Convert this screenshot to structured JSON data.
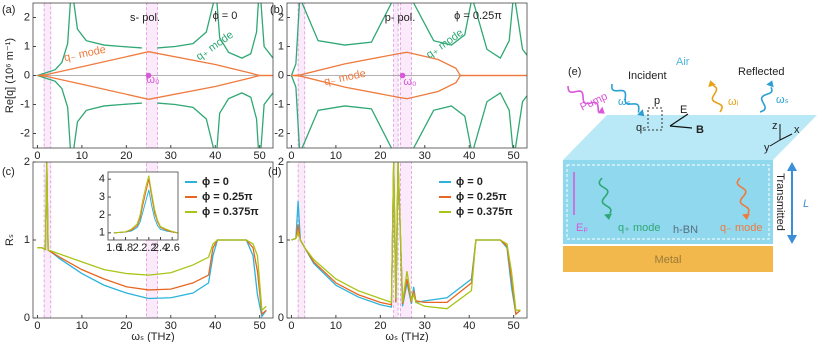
{
  "chart_data": [
    {
      "type": "line",
      "label": "(a)",
      "title": "s- pol.",
      "ylabel": "Re[q] (10⁶ m⁻¹)",
      "annotations": [
        "ϕ = 0",
        "q₋ mode",
        "q₊ mode",
        "ω₀"
      ],
      "xlim": [
        -1,
        53
      ],
      "ylim": [
        -2.5,
        2.5
      ],
      "xticks": [
        0,
        10,
        20,
        30,
        40,
        50
      ],
      "yticks": [
        -2,
        -1,
        0,
        1,
        2
      ],
      "zero_line": true,
      "highlight_bands": [
        [
          1.5,
          3
        ],
        [
          24.5,
          27
        ]
      ],
      "point": {
        "x": 25,
        "y": 0,
        "color": "#d957d9"
      },
      "series": [
        {
          "color": "#2fa874",
          "x": [
            0,
            2,
            4,
            5.5,
            6.8,
            7.4,
            null,
            8.2,
            9,
            11,
            15,
            19,
            23.5,
            null,
            27,
            31,
            35,
            38,
            39.6,
            null,
            40.4,
            41,
            43,
            46,
            48,
            49.3,
            49.7,
            null,
            50.3,
            51,
            53
          ],
          "values": [
            0,
            0.1,
            0.2,
            0.45,
            1.1,
            2.5,
            null,
            2.5,
            1.6,
            1.2,
            1.05,
            1.0,
            0.95,
            null,
            0.95,
            1.0,
            1.1,
            1.5,
            2.5,
            null,
            2.5,
            1.3,
            0.8,
            0.6,
            0.75,
            1.5,
            2.5,
            null,
            2.5,
            1.0,
            0.6
          ]
        },
        {
          "color": "#2fa874",
          "x": [
            0,
            2,
            4,
            5.5,
            6.8,
            7.4,
            null,
            8.2,
            9,
            11,
            15,
            19,
            23.5,
            null,
            27,
            31,
            35,
            38,
            39.6,
            null,
            40.4,
            41,
            43,
            46,
            48,
            49.3,
            49.7,
            null,
            50.3,
            51,
            53
          ],
          "values": [
            0,
            -0.1,
            -0.2,
            -0.45,
            -1.1,
            -2.5,
            null,
            -2.5,
            -1.6,
            -1.2,
            -1.05,
            -1.0,
            -0.95,
            null,
            -0.95,
            -1.0,
            -1.1,
            -1.5,
            -2.5,
            null,
            -2.5,
            -1.3,
            -0.8,
            -0.6,
            -0.75,
            -1.5,
            -2.5,
            null,
            -2.5,
            -1.0,
            -0.6
          ]
        },
        {
          "color": "#ef7a3d",
          "x": [
            0,
            2,
            10,
            25,
            40,
            48,
            50,
            53
          ],
          "values": [
            0,
            0.03,
            0.3,
            0.82,
            0.38,
            0.08,
            0,
            0
          ]
        },
        {
          "color": "#ef7a3d",
          "x": [
            0,
            2,
            10,
            25,
            40,
            48,
            50,
            53
          ],
          "values": [
            0,
            -0.03,
            -0.3,
            -0.82,
            -0.38,
            -0.08,
            0,
            0
          ]
        }
      ]
    },
    {
      "type": "line",
      "label": "(b)",
      "title": "p- pol.",
      "annotations": [
        "ϕ = 0.25π",
        "q₋ mode",
        "q₊ mode",
        "ω₀"
      ],
      "xlim": [
        -1,
        53
      ],
      "ylim": [
        -2.5,
        2.5
      ],
      "xticks": [
        0,
        10,
        20,
        30,
        40,
        50
      ],
      "yticks": [
        -2,
        -1,
        0,
        1,
        2
      ],
      "zero_line": true,
      "highlight_bands": [
        [
          1.5,
          3
        ],
        [
          23,
          24
        ],
        [
          24.5,
          27
        ]
      ],
      "point": {
        "x": 25,
        "y": 0,
        "color": "#d957d9"
      },
      "series": [
        {
          "color": "#2fa874",
          "x": [
            0,
            1,
            1.8,
            null,
            2.4,
            6,
            12,
            18,
            22.5,
            null,
            27.5,
            32,
            36,
            39,
            40.4,
            null,
            41,
            44,
            47,
            49,
            49.8,
            null,
            50.4,
            52,
            53
          ],
          "values": [
            0,
            0.4,
            2.5,
            null,
            2.5,
            1.2,
            1.05,
            1.15,
            2.5,
            null,
            2.5,
            1.2,
            1.05,
            1.4,
            2.5,
            null,
            2.5,
            0.9,
            0.6,
            1.2,
            2.5,
            null,
            2.5,
            0.9,
            0.7
          ]
        },
        {
          "color": "#2fa874",
          "x": [
            0,
            1,
            1.8,
            null,
            2.4,
            6,
            12,
            18,
            22.5,
            null,
            27.5,
            32,
            36,
            39,
            40.4,
            null,
            41,
            44,
            47,
            49,
            49.8,
            null,
            50.4,
            52,
            53
          ],
          "values": [
            0,
            -0.4,
            -2.5,
            null,
            -2.5,
            -1.2,
            -1.05,
            -1.15,
            -2.5,
            null,
            -2.5,
            -1.2,
            -1.05,
            -1.4,
            -2.5,
            null,
            -2.5,
            -0.9,
            -0.6,
            -1.2,
            -2.5,
            null,
            -2.5,
            -0.9,
            -0.7
          ]
        },
        {
          "color": "#ef7a3d",
          "x": [
            0,
            2,
            12,
            24,
            26,
            33,
            37,
            38,
            45,
            53
          ],
          "values": [
            0,
            0.02,
            0.4,
            0.75,
            0.8,
            0.55,
            0.25,
            0,
            0,
            0
          ]
        },
        {
          "color": "#ef7a3d",
          "x": [
            0,
            2,
            12,
            24,
            26,
            33,
            37,
            38,
            45,
            53
          ],
          "values": [
            0,
            -0.02,
            -0.4,
            -0.75,
            -0.8,
            -0.55,
            -0.25,
            0,
            0,
            0
          ]
        }
      ]
    },
    {
      "type": "line",
      "label": "(c)",
      "ylabel": "Rₛ",
      "xlabel": "ωₛ (THz)",
      "legend": "upper right",
      "xlim": [
        -1,
        53
      ],
      "ylim": [
        0,
        2
      ],
      "xticks": [
        0,
        10,
        20,
        30,
        40,
        50
      ],
      "yticks": [
        0,
        1,
        2
      ],
      "highlight_bands": [
        [
          1.5,
          3
        ],
        [
          24.5,
          27
        ]
      ],
      "x": [
        0,
        1,
        1.8,
        2.1,
        2.4,
        3,
        5,
        10,
        15,
        20,
        25,
        30,
        35,
        38.5,
        39.5,
        40.5,
        44,
        47,
        48.5,
        49.5,
        50.5,
        51.5
      ],
      "series": [
        {
          "name": "ϕ = 0",
          "color": "#2bb3dc",
          "values": [
            0.9,
            0.9,
            0.88,
            2,
            0.87,
            0.85,
            0.76,
            0.57,
            0.42,
            0.32,
            0.25,
            0.26,
            0.32,
            0.45,
            0.8,
            1.0,
            1.0,
            1.0,
            0.8,
            0.3,
            0.02,
            0.1
          ]
        },
        {
          "name": "ϕ = 0.25π",
          "color": "#e8661f",
          "values": [
            0.9,
            0.9,
            0.88,
            2,
            0.87,
            0.85,
            0.78,
            0.62,
            0.5,
            0.4,
            0.36,
            0.37,
            0.45,
            0.55,
            0.9,
            1.0,
            1.0,
            1.0,
            0.9,
            0.6,
            0.05,
            0.1
          ]
        },
        {
          "name": "ϕ = 0.375π",
          "color": "#a9c416",
          "values": [
            0.9,
            0.9,
            0.88,
            2,
            0.87,
            0.86,
            0.82,
            0.72,
            0.62,
            0.57,
            0.55,
            0.58,
            0.68,
            0.78,
            0.95,
            1.0,
            1.0,
            1.0,
            0.95,
            0.8,
            0.1,
            0.15
          ]
        }
      ]
    },
    {
      "type": "line",
      "inset": true,
      "xlim": [
        1.5,
        2.7
      ],
      "ylim": [
        0.6,
        4.4
      ],
      "xticks": [
        1.6,
        1.8,
        {
          "value": 2,
          "label": "2."
        },
        2.2,
        2.4,
        2.6
      ],
      "yticks": [
        1,
        2,
        3,
        4
      ],
      "x": [
        1.6,
        1.8,
        1.9,
        2.0,
        2.05,
        2.1,
        2.15,
        2.2,
        2.25,
        2.3,
        2.35,
        2.4,
        2.5,
        2.6,
        2.7
      ],
      "series": [
        {
          "color": "#2bb3dc",
          "values": [
            1,
            1.05,
            1.1,
            1.3,
            1.6,
            2.2,
            2.8,
            3.4,
            2.5,
            1.8,
            1.4,
            1.2,
            1.1,
            1.05,
            1
          ]
        },
        {
          "color": "#e8661f",
          "values": [
            1,
            1.05,
            1.15,
            1.4,
            1.8,
            2.6,
            3.3,
            4,
            3,
            2.1,
            1.6,
            1.3,
            1.15,
            1.05,
            1
          ]
        },
        {
          "color": "#a9c416",
          "values": [
            1,
            1.06,
            1.2,
            1.5,
            2,
            2.9,
            3.6,
            4.2,
            3.2,
            2.3,
            1.7,
            1.35,
            1.2,
            1.08,
            1
          ]
        }
      ]
    },
    {
      "type": "line",
      "label": "(d)",
      "xlabel": "ωₛ (THz)",
      "legend": "upper right",
      "xlim": [
        -1,
        53
      ],
      "ylim": [
        0,
        2
      ],
      "xticks": [
        0,
        10,
        20,
        30,
        40,
        50
      ],
      "yticks": [
        0,
        1,
        2
      ],
      "highlight_bands": [
        [
          1.5,
          3
        ],
        [
          23,
          24
        ],
        [
          24.5,
          27
        ]
      ],
      "x": [
        0,
        1,
        1.5,
        2,
        3,
        5,
        10,
        15,
        20,
        22.5,
        23,
        23.5,
        24,
        25,
        26,
        27,
        27.5,
        28,
        30,
        35,
        40.5,
        41.5,
        44,
        47,
        48.5,
        49.5,
        50.5,
        51.5
      ],
      "series": [
        {
          "name": "ϕ = 0",
          "color": "#2bb3dc",
          "values": [
            1,
            1.02,
            1.5,
            1.0,
            0.9,
            0.7,
            0.42,
            0.27,
            0.17,
            0.14,
            2,
            0.2,
            2,
            0.15,
            0.45,
            0.18,
            0.4,
            0.2,
            0.22,
            0.26,
            0.5,
            1.0,
            1.0,
            1.0,
            0.9,
            0.4,
            0.05,
            0.1
          ]
        },
        {
          "name": "ϕ = 0.25π",
          "color": "#e8661f",
          "values": [
            1,
            1.02,
            1.2,
            1.0,
            0.9,
            0.72,
            0.45,
            0.3,
            0.2,
            0.17,
            2,
            0.2,
            2,
            0.18,
            0.5,
            0.2,
            0.35,
            0.22,
            0.2,
            0.2,
            0.45,
            1.0,
            1.0,
            1.0,
            0.92,
            0.5,
            0.05,
            0.1
          ]
        },
        {
          "name": "ϕ = 0.375π",
          "color": "#a9c416",
          "values": [
            1,
            1.02,
            1.1,
            1.0,
            0.9,
            0.75,
            0.5,
            0.35,
            0.25,
            0.2,
            2,
            0.25,
            2,
            0.2,
            0.6,
            0.22,
            0.3,
            0.2,
            0.15,
            0.12,
            0.35,
            1.0,
            1.0,
            1.0,
            0.95,
            0.6,
            0.1,
            0.1
          ]
        }
      ]
    }
  ],
  "diagram": {
    "label": "(e)",
    "air": "Air",
    "incident": "Incident",
    "reflected": "Reflected",
    "pump": "Pump",
    "omega_s_in": "ωₛ",
    "omega_i": "ωᵢ",
    "omega_s_out": "ωₛ",
    "p": "p",
    "q_s": "qₛ",
    "E": "E",
    "B": "B",
    "z": "z",
    "y": "y",
    "x": "x",
    "E_p": "Eₚ",
    "q_plus_mode": "q₊ mode",
    "hbn": "h-BN",
    "q_minus_mode": "q₋ mode",
    "transmitted": "Transmitted",
    "L": "L",
    "metal": "Metal"
  }
}
